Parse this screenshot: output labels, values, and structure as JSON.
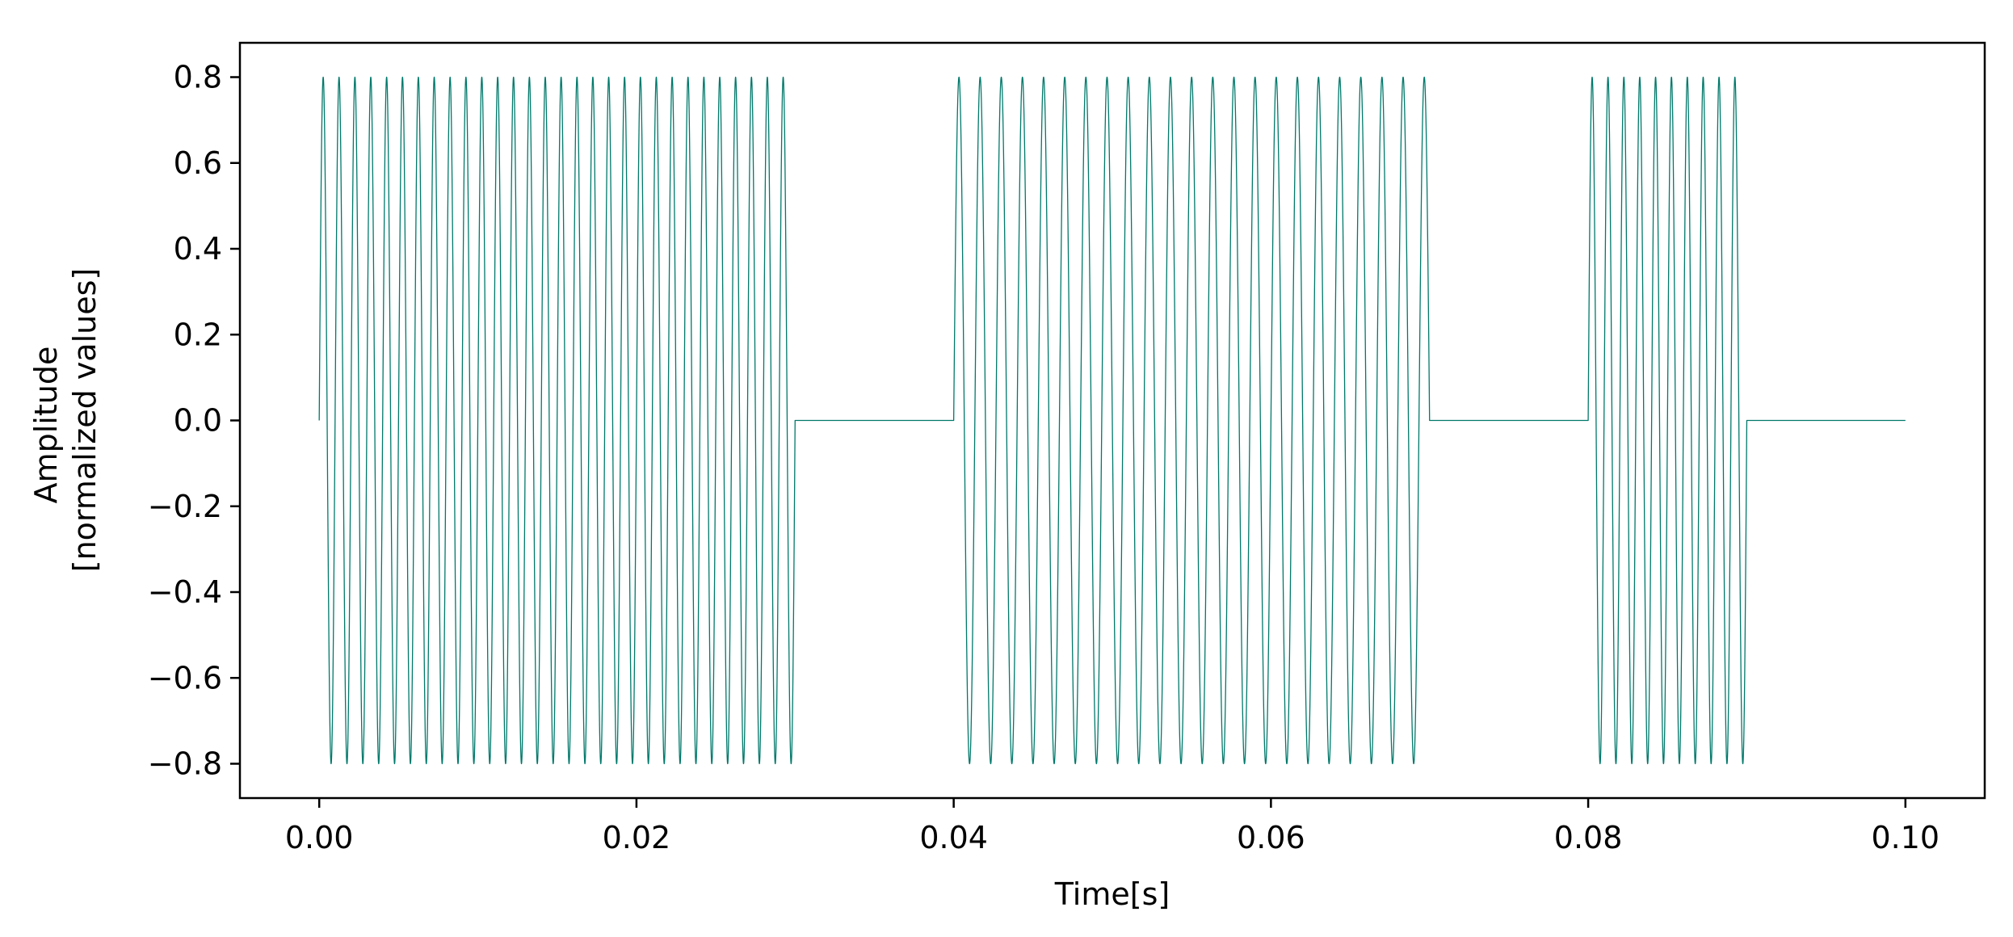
{
  "chart_data": {
    "type": "line",
    "title": "",
    "xlabel": "Time[s]",
    "ylabel_lines": [
      "Amplitude",
      "[normalized values]"
    ],
    "xlim": [
      -0.005,
      0.105
    ],
    "ylim": [
      -0.88,
      0.88
    ],
    "x_ticks": [
      0.0,
      0.02,
      0.04,
      0.06,
      0.08,
      0.1
    ],
    "x_tick_labels": [
      "0.00",
      "0.02",
      "0.04",
      "0.06",
      "0.08",
      "0.10"
    ],
    "y_ticks": [
      0.8,
      0.6,
      0.4,
      0.2,
      0.0,
      -0.2,
      -0.4,
      -0.6,
      -0.8
    ],
    "y_tick_labels": [
      "0.8",
      "0.6",
      "0.4",
      "0.2",
      "0.0",
      "−0.2",
      "−0.4",
      "−0.6",
      "−0.8"
    ],
    "grid": false,
    "legend": "none",
    "line_color": "#00796b",
    "signal": {
      "amplitude": 0.8,
      "duration": 0.1,
      "bursts": [
        {
          "start": 0.0,
          "end": 0.03,
          "frequency_hz": 1000
        },
        {
          "start": 0.04,
          "end": 0.07,
          "frequency_hz": 750
        },
        {
          "start": 0.08,
          "end": 0.09,
          "frequency_hz": 1000
        }
      ]
    }
  }
}
